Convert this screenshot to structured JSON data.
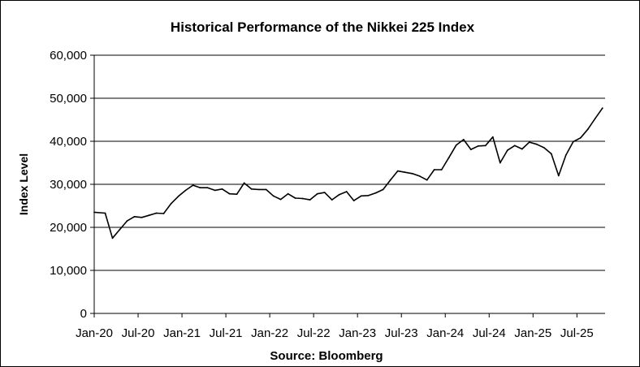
{
  "chart_data": {
    "type": "line",
    "title": "Historical Performance of the Nikkei 225 Index",
    "ylabel": "Index Level",
    "xlabel": "Source: Bloomberg",
    "ylim": [
      0,
      60000
    ],
    "yticks": [
      0,
      10000,
      20000,
      30000,
      40000,
      50000,
      60000
    ],
    "ytick_labels": [
      "0",
      "10,000",
      "20,000",
      "30,000",
      "40,000",
      "50,000",
      "60,000"
    ],
    "xlim": [
      "2020-01",
      "2025-10"
    ],
    "xtick_labels": [
      "Jan-20",
      "Jul-20",
      "Jan-21",
      "Jul-21",
      "Jan-22",
      "Jul-22",
      "Jan-23",
      "Jul-23",
      "Jan-24",
      "Jul-24",
      "Jan-25",
      "Jul-25"
    ],
    "grid": "horizontal",
    "legend": "none",
    "line_color": "#000000",
    "series": [
      {
        "x": [
          "2020-01",
          "2020-02",
          "2020-03",
          "2020-04",
          "2020-05",
          "2020-06",
          "2020-07",
          "2020-08",
          "2020-09",
          "2020-10",
          "2020-11",
          "2020-12",
          "2021-01",
          "2021-02",
          "2021-03",
          "2021-04",
          "2021-05",
          "2021-06",
          "2021-07",
          "2021-08",
          "2021-09",
          "2021-10",
          "2021-11",
          "2021-12",
          "2022-01",
          "2022-02",
          "2022-03",
          "2022-04",
          "2022-05",
          "2022-06",
          "2022-07",
          "2022-08",
          "2022-09",
          "2022-10",
          "2022-11",
          "2022-12",
          "2023-01",
          "2023-02",
          "2023-03",
          "2023-04",
          "2023-05",
          "2023-06",
          "2023-07",
          "2023-08",
          "2023-09",
          "2023-10",
          "2023-11",
          "2023-12",
          "2024-01",
          "2024-02",
          "2024-03",
          "2024-04",
          "2024-05",
          "2024-06",
          "2024-07",
          "2024-08",
          "2024-09",
          "2024-10",
          "2024-11",
          "2024-12",
          "2025-01",
          "2025-02",
          "2025-03",
          "2025-04",
          "2025-05",
          "2025-06",
          "2025-07",
          "2025-08",
          "2025-09",
          "2025-10"
        ],
        "values": [
          23500,
          23300,
          17500,
          19500,
          21500,
          22500,
          22300,
          22800,
          23300,
          23200,
          25500,
          27200,
          28600,
          29800,
          29200,
          29200,
          28600,
          28900,
          27800,
          27700,
          30300,
          28900,
          28800,
          28800,
          27300,
          26500,
          27800,
          26800,
          26700,
          26400,
          27800,
          28100,
          26400,
          27600,
          28300,
          26200,
          27300,
          27400,
          28000,
          28800,
          31000,
          33100,
          32800,
          32500,
          31900,
          31000,
          33400,
          33400,
          36200,
          39100,
          40400,
          38100,
          38900,
          39000,
          41000,
          35000,
          37900,
          39000,
          38200,
          39800,
          39300,
          38500,
          37100,
          32000,
          36800,
          39900,
          40800,
          42800,
          45300,
          47700
        ]
      }
    ]
  }
}
